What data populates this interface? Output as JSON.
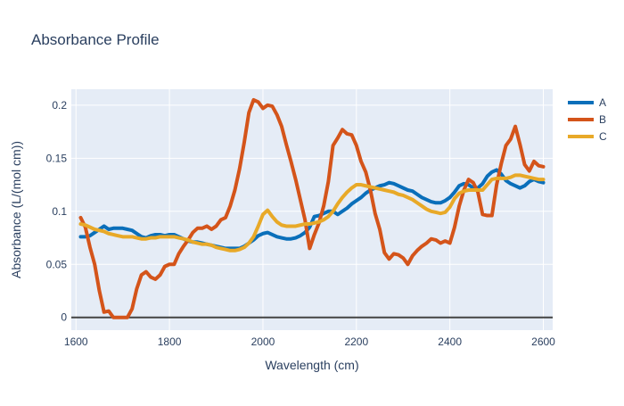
{
  "chart_data": {
    "type": "line",
    "title": "Absorbance Profile",
    "xlabel": "Wavelength (cm)",
    "ylabel": "Absorbance (L/(mol cm))",
    "xlim": [
      1590,
      2620
    ],
    "ylim": [
      -0.012,
      0.215
    ],
    "xticks": [
      1600,
      1800,
      2000,
      2200,
      2400,
      2600
    ],
    "yticks": [
      0,
      0.05,
      0.1,
      0.15,
      0.2
    ],
    "ytick_labels": [
      "0",
      "0.05",
      "0.1",
      "0.15",
      "0.2"
    ],
    "grid": true,
    "zero_line": true,
    "legend_position": "top-right",
    "colors": {
      "plot_background": "#e5ecf6",
      "grid": "#ffffff",
      "zero_line": "#444444",
      "text": "#2a3f5f"
    },
    "series": [
      {
        "name": "A",
        "color": "#0a6fba",
        "x": [
          1610,
          1620,
          1630,
          1640,
          1650,
          1660,
          1670,
          1680,
          1690,
          1700,
          1710,
          1720,
          1730,
          1740,
          1750,
          1760,
          1770,
          1780,
          1790,
          1800,
          1810,
          1820,
          1830,
          1840,
          1850,
          1860,
          1870,
          1880,
          1890,
          1900,
          1910,
          1920,
          1930,
          1940,
          1950,
          1960,
          1970,
          1980,
          1990,
          2000,
          2010,
          2020,
          2030,
          2040,
          2050,
          2060,
          2070,
          2080,
          2090,
          2100,
          2110,
          2120,
          2130,
          2140,
          2150,
          2160,
          2170,
          2180,
          2190,
          2200,
          2210,
          2220,
          2230,
          2240,
          2250,
          2260,
          2270,
          2280,
          2290,
          2300,
          2310,
          2320,
          2330,
          2340,
          2350,
          2360,
          2370,
          2380,
          2390,
          2400,
          2410,
          2420,
          2430,
          2440,
          2450,
          2460,
          2470,
          2480,
          2490,
          2500,
          2510,
          2520,
          2530,
          2540,
          2550,
          2560,
          2570,
          2580,
          2590,
          2600
        ],
        "values": [
          0.076,
          0.076,
          0.077,
          0.08,
          0.083,
          0.086,
          0.083,
          0.084,
          0.084,
          0.084,
          0.083,
          0.082,
          0.079,
          0.076,
          0.075,
          0.077,
          0.078,
          0.078,
          0.077,
          0.078,
          0.078,
          0.076,
          0.074,
          0.072,
          0.071,
          0.071,
          0.07,
          0.069,
          0.068,
          0.067,
          0.066,
          0.065,
          0.065,
          0.065,
          0.065,
          0.067,
          0.07,
          0.073,
          0.077,
          0.079,
          0.08,
          0.078,
          0.076,
          0.075,
          0.074,
          0.074,
          0.075,
          0.077,
          0.08,
          0.085,
          0.095,
          0.096,
          0.098,
          0.1,
          0.1,
          0.097,
          0.1,
          0.103,
          0.107,
          0.11,
          0.113,
          0.117,
          0.12,
          0.122,
          0.124,
          0.125,
          0.127,
          0.126,
          0.124,
          0.122,
          0.12,
          0.119,
          0.116,
          0.113,
          0.111,
          0.109,
          0.108,
          0.108,
          0.11,
          0.113,
          0.118,
          0.124,
          0.126,
          0.125,
          0.122,
          0.122,
          0.126,
          0.133,
          0.137,
          0.139,
          0.135,
          0.129,
          0.126,
          0.124,
          0.122,
          0.124,
          0.128,
          0.13,
          0.128,
          0.127
        ]
      },
      {
        "name": "B",
        "color": "#d4541a",
        "x": [
          1610,
          1620,
          1630,
          1640,
          1650,
          1660,
          1670,
          1680,
          1690,
          1700,
          1710,
          1720,
          1730,
          1740,
          1750,
          1760,
          1770,
          1780,
          1790,
          1800,
          1810,
          1820,
          1830,
          1840,
          1850,
          1860,
          1870,
          1880,
          1890,
          1900,
          1910,
          1920,
          1930,
          1940,
          1950,
          1960,
          1970,
          1980,
          1990,
          2000,
          2010,
          2020,
          2030,
          2040,
          2050,
          2060,
          2070,
          2080,
          2090,
          2100,
          2110,
          2120,
          2130,
          2140,
          2150,
          2160,
          2170,
          2180,
          2190,
          2200,
          2210,
          2220,
          2230,
          2240,
          2250,
          2260,
          2270,
          2280,
          2290,
          2300,
          2310,
          2320,
          2330,
          2340,
          2350,
          2360,
          2370,
          2380,
          2390,
          2400,
          2410,
          2420,
          2430,
          2440,
          2450,
          2460,
          2470,
          2480,
          2490,
          2500,
          2510,
          2520,
          2530,
          2540,
          2550,
          2560,
          2570,
          2580,
          2590,
          2600
        ],
        "values": [
          0.094,
          0.085,
          0.066,
          0.05,
          0.025,
          0.005,
          0.006,
          0.0,
          0.0,
          0.0,
          0.0,
          0.008,
          0.027,
          0.04,
          0.043,
          0.038,
          0.036,
          0.04,
          0.048,
          0.05,
          0.05,
          0.06,
          0.067,
          0.073,
          0.08,
          0.084,
          0.084,
          0.086,
          0.083,
          0.086,
          0.092,
          0.094,
          0.105,
          0.12,
          0.14,
          0.165,
          0.193,
          0.205,
          0.203,
          0.197,
          0.2,
          0.199,
          0.191,
          0.18,
          0.163,
          0.147,
          0.13,
          0.111,
          0.092,
          0.065,
          0.078,
          0.089,
          0.105,
          0.128,
          0.162,
          0.169,
          0.177,
          0.173,
          0.172,
          0.162,
          0.147,
          0.137,
          0.12,
          0.098,
          0.083,
          0.061,
          0.055,
          0.06,
          0.059,
          0.056,
          0.05,
          0.058,
          0.063,
          0.067,
          0.07,
          0.074,
          0.073,
          0.07,
          0.072,
          0.07,
          0.085,
          0.105,
          0.12,
          0.13,
          0.127,
          0.118,
          0.097,
          0.096,
          0.096,
          0.125,
          0.145,
          0.162,
          0.168,
          0.18,
          0.163,
          0.144,
          0.138,
          0.147,
          0.143,
          0.142
        ]
      },
      {
        "name": "C",
        "color": "#e8a928",
        "x": [
          1610,
          1620,
          1630,
          1640,
          1650,
          1660,
          1670,
          1680,
          1690,
          1700,
          1710,
          1720,
          1730,
          1740,
          1750,
          1760,
          1770,
          1780,
          1790,
          1800,
          1810,
          1820,
          1830,
          1840,
          1850,
          1860,
          1870,
          1880,
          1890,
          1900,
          1910,
          1920,
          1930,
          1940,
          1950,
          1960,
          1970,
          1980,
          1990,
          2000,
          2010,
          2020,
          2030,
          2040,
          2050,
          2060,
          2070,
          2080,
          2090,
          2100,
          2110,
          2120,
          2130,
          2140,
          2150,
          2160,
          2170,
          2180,
          2190,
          2200,
          2210,
          2220,
          2230,
          2240,
          2250,
          2260,
          2270,
          2280,
          2290,
          2300,
          2310,
          2320,
          2330,
          2340,
          2350,
          2360,
          2370,
          2380,
          2390,
          2400,
          2410,
          2420,
          2430,
          2440,
          2450,
          2460,
          2470,
          2480,
          2490,
          2500,
          2510,
          2520,
          2530,
          2540,
          2550,
          2560,
          2570,
          2580,
          2590,
          2600
        ],
        "values": [
          0.088,
          0.087,
          0.085,
          0.083,
          0.082,
          0.081,
          0.079,
          0.078,
          0.077,
          0.076,
          0.076,
          0.076,
          0.075,
          0.074,
          0.074,
          0.075,
          0.075,
          0.076,
          0.076,
          0.076,
          0.076,
          0.075,
          0.074,
          0.073,
          0.071,
          0.07,
          0.069,
          0.069,
          0.068,
          0.066,
          0.065,
          0.064,
          0.063,
          0.063,
          0.064,
          0.066,
          0.07,
          0.076,
          0.086,
          0.097,
          0.101,
          0.095,
          0.09,
          0.087,
          0.086,
          0.086,
          0.086,
          0.087,
          0.088,
          0.088,
          0.089,
          0.09,
          0.092,
          0.095,
          0.1,
          0.107,
          0.113,
          0.118,
          0.122,
          0.125,
          0.125,
          0.124,
          0.123,
          0.122,
          0.121,
          0.12,
          0.119,
          0.118,
          0.116,
          0.115,
          0.113,
          0.111,
          0.108,
          0.105,
          0.102,
          0.1,
          0.099,
          0.098,
          0.099,
          0.104,
          0.112,
          0.117,
          0.119,
          0.12,
          0.12,
          0.12,
          0.12,
          0.125,
          0.13,
          0.131,
          0.131,
          0.131,
          0.132,
          0.134,
          0.134,
          0.133,
          0.132,
          0.131,
          0.13,
          0.13
        ]
      }
    ]
  }
}
